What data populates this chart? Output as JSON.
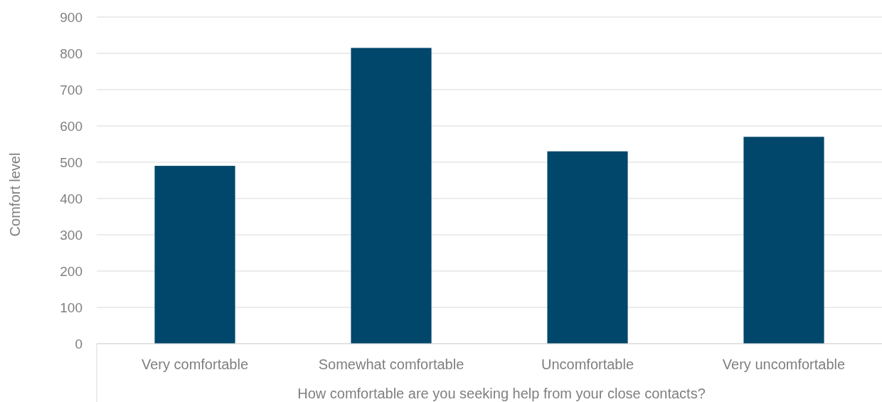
{
  "chart_data": {
    "type": "bar",
    "xlabel": "How comfortable are you seeking help from your close contacts?",
    "ylabel": "Comfort level",
    "categories": [
      "Very comfortable",
      "Somewhat comfortable",
      "Uncomfortable",
      "Very uncomfortable"
    ],
    "values": [
      490,
      815,
      530,
      570
    ],
    "color": "#00476b",
    "ylim": [
      0,
      900
    ],
    "yticks": [
      0,
      100,
      200,
      300,
      400,
      500,
      600,
      700,
      800,
      900
    ],
    "grid": "y"
  }
}
